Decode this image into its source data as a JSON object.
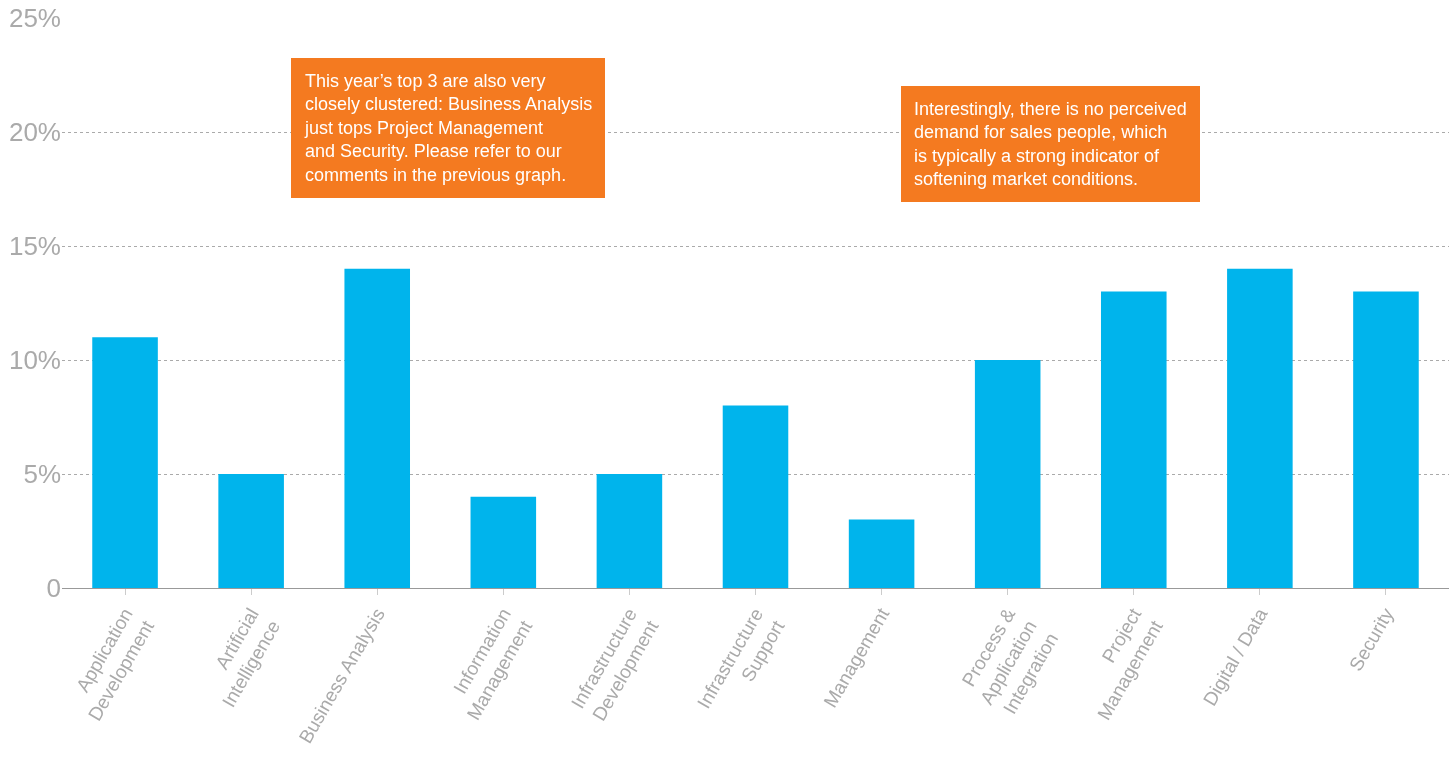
{
  "chart_data": {
    "type": "bar",
    "categories": [
      "Application\nDevelopment",
      "Artificial\nIntelligence",
      "Business Analysis",
      "Information\nManagement",
      "Infrastructure\nDevelopment",
      "Infrastructure\nSupport",
      "Management",
      "Process &\nApplication\nIntegration",
      "Project\nManagement",
      "Digital / Data",
      "Security"
    ],
    "values": [
      11,
      5,
      14,
      4,
      5,
      8,
      3,
      10,
      13,
      14,
      13
    ],
    "color": "#00b4ec",
    "ylim": [
      0,
      25
    ],
    "yticks": [
      0,
      {
        "value": 5,
        "label": "5%"
      },
      {
        "value": 10,
        "label": "10%"
      },
      {
        "value": 15,
        "label": "15%"
      },
      {
        "value": 20,
        "label": "20%"
      },
      {
        "value": 25,
        "label": "25%"
      }
    ],
    "grid": "y",
    "annotations": [
      "This year’s top 3 are also very\nclosely clustered: Business Analysis\njust tops Project Management\nand Security. Please refer to our\ncomments in the previous graph.",
      "Interestingly, there is no perceived\ndemand for sales people, which\nis typically a strong indicator of\nsoftening market conditions."
    ]
  }
}
